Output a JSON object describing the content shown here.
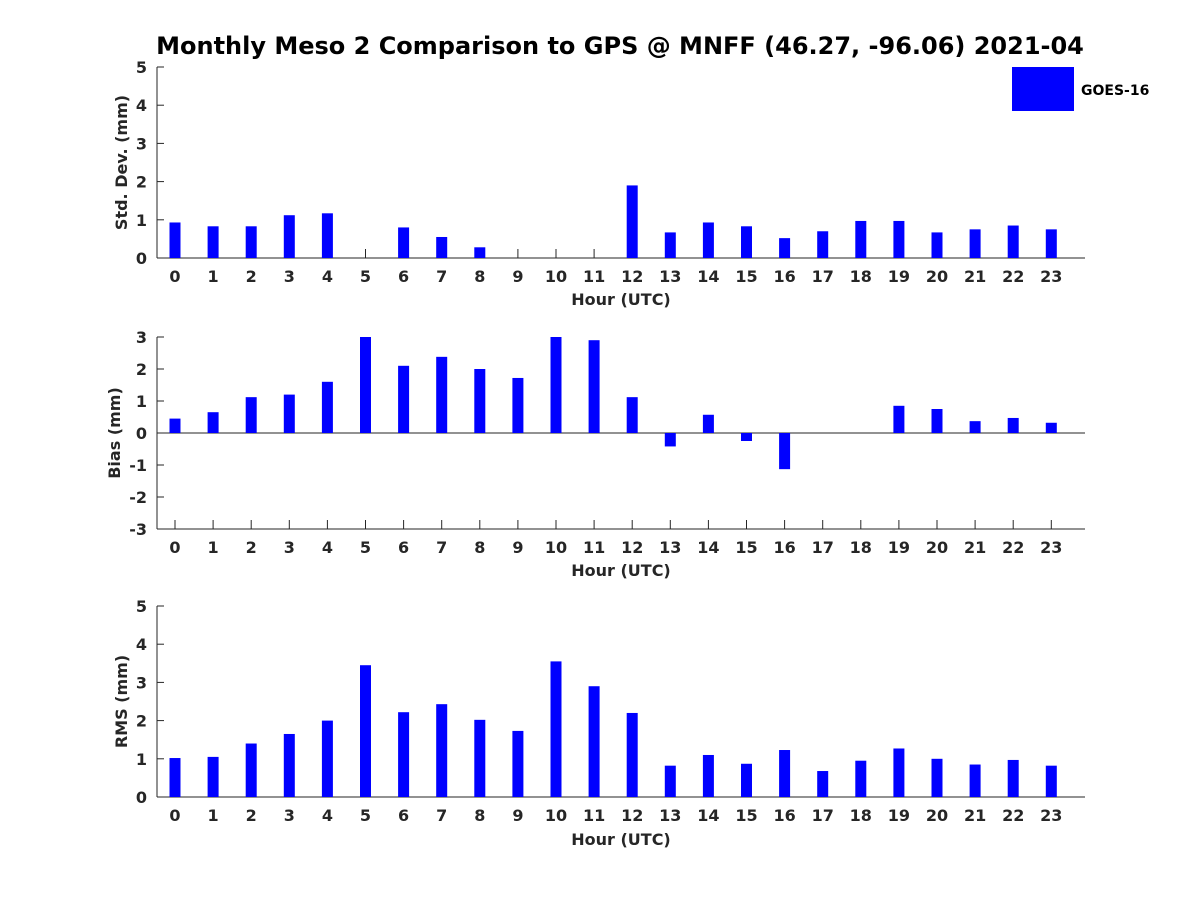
{
  "title": "Monthly Meso 2 Comparison to GPS @ MNFF (46.27, -96.06) 2021-04",
  "legend": {
    "label": "GOES-16",
    "color": "#0000ff"
  },
  "chart_data": [
    {
      "type": "bar",
      "xlabel": "Hour (UTC)",
      "ylabel": "Std. Dev. (mm)",
      "ylim": [
        0,
        5
      ],
      "yticks": [
        "0",
        "1",
        "2",
        "3",
        "4",
        "5"
      ],
      "categories": [
        "0",
        "1",
        "2",
        "3",
        "4",
        "5",
        "6",
        "7",
        "8",
        "9",
        "10",
        "11",
        "12",
        "13",
        "14",
        "15",
        "16",
        "17",
        "18",
        "19",
        "20",
        "21",
        "22",
        "23"
      ],
      "series": [
        {
          "name": "GOES-16",
          "values": [
            0.93,
            0.83,
            0.83,
            1.12,
            1.17,
            0.0,
            0.8,
            0.55,
            0.28,
            0.0,
            0.0,
            0.0,
            1.9,
            0.67,
            0.93,
            0.83,
            0.52,
            0.7,
            0.97,
            0.97,
            0.67,
            0.75,
            0.85,
            0.75
          ]
        }
      ]
    },
    {
      "type": "bar",
      "xlabel": "Hour (UTC)",
      "ylabel": "Bias (mm)",
      "ylim": [
        -3,
        3
      ],
      "yticks": [
        "-3",
        "-2",
        "-1",
        "0",
        "1",
        "2",
        "3"
      ],
      "categories": [
        "0",
        "1",
        "2",
        "3",
        "4",
        "5",
        "6",
        "7",
        "8",
        "9",
        "10",
        "11",
        "12",
        "13",
        "14",
        "15",
        "16",
        "17",
        "18",
        "19",
        "20",
        "21",
        "22",
        "23"
      ],
      "series": [
        {
          "name": "GOES-16",
          "values": [
            0.45,
            0.65,
            1.12,
            1.2,
            1.6,
            3.0,
            2.1,
            2.38,
            2.0,
            1.72,
            3.0,
            2.9,
            1.12,
            -0.42,
            0.57,
            -0.25,
            -1.13,
            0.0,
            0.0,
            0.85,
            0.75,
            0.37,
            0.47,
            0.32
          ]
        }
      ]
    },
    {
      "type": "bar",
      "xlabel": "Hour (UTC)",
      "ylabel": "RMS (mm)",
      "ylim": [
        0,
        5
      ],
      "yticks": [
        "0",
        "1",
        "2",
        "3",
        "4",
        "5"
      ],
      "categories": [
        "0",
        "1",
        "2",
        "3",
        "4",
        "5",
        "6",
        "7",
        "8",
        "9",
        "10",
        "11",
        "12",
        "13",
        "14",
        "15",
        "16",
        "17",
        "18",
        "19",
        "20",
        "21",
        "22",
        "23"
      ],
      "series": [
        {
          "name": "GOES-16",
          "values": [
            1.02,
            1.05,
            1.4,
            1.65,
            2.0,
            3.45,
            2.22,
            2.43,
            2.02,
            1.73,
            3.55,
            2.9,
            2.2,
            0.82,
            1.1,
            0.87,
            1.23,
            0.68,
            0.95,
            1.27,
            1.0,
            0.85,
            0.97,
            0.82
          ]
        }
      ]
    }
  ]
}
